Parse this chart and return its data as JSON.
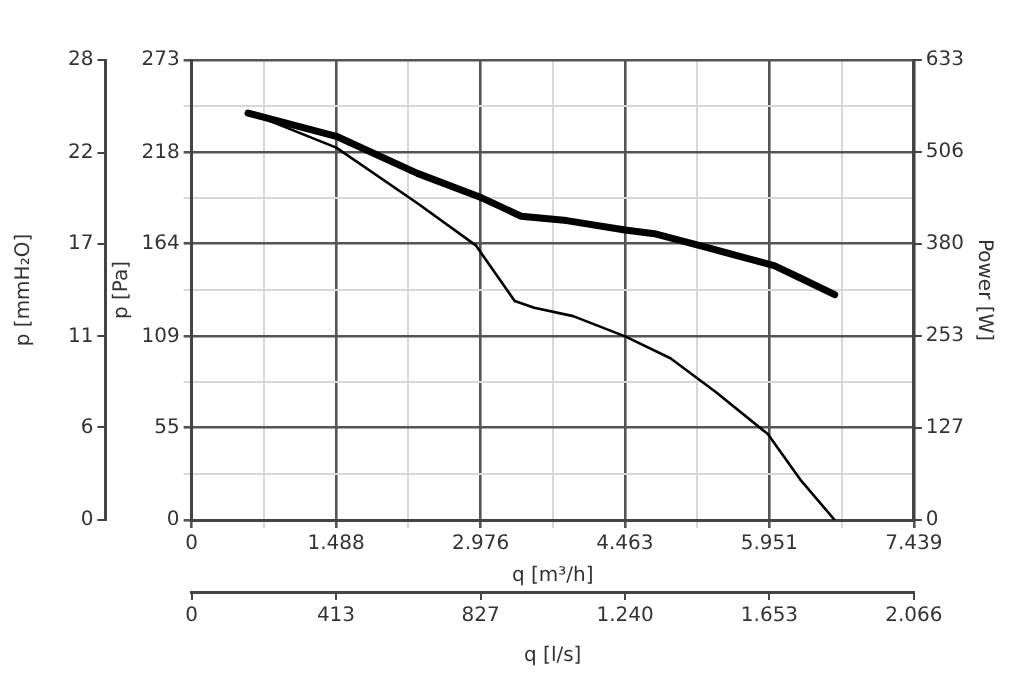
{
  "chart_data": {
    "type": "line",
    "xlabel": "q [m³/h]",
    "ylabel": "p [Pa]",
    "y2label": "Power [W]",
    "y3label": "p [mmH₂O]",
    "x2label": "q [l/s]",
    "xlim": [
      0,
      7439
    ],
    "xticks": [
      0,
      {
        "value": 744,
        "label": null
      },
      {
        "value": 1488,
        "label": "1.488"
      },
      {
        "value": 2232,
        "label": null
      },
      {
        "value": 2976,
        "label": "2.976"
      },
      {
        "value": 3720,
        "label": null
      },
      {
        "value": 4463,
        "label": "4.463"
      },
      {
        "value": 5207,
        "label": null
      },
      {
        "value": 5951,
        "label": "5.951"
      },
      {
        "value": 6695,
        "label": null
      },
      {
        "value": 7439,
        "label": "7.439"
      }
    ],
    "ylim": [
      0,
      273
    ],
    "yticks": [
      0,
      {
        "value": 27.3,
        "label": null
      },
      55,
      {
        "value": 82,
        "label": null
      },
      109,
      {
        "value": 136.5,
        "label": null
      },
      164,
      {
        "value": 191,
        "label": null
      },
      218,
      {
        "value": 245.5,
        "label": null
      },
      273
    ],
    "y2lim": [
      0,
      633
    ],
    "y2ticks": [
      0,
      127,
      253,
      380,
      506,
      633
    ],
    "y3lim": [
      0,
      27.8
    ],
    "y3ticks": [
      0,
      {
        "value": 5.6,
        "label": "6"
      },
      {
        "value": 11.1,
        "label": "11"
      },
      {
        "value": 16.7,
        "label": "17"
      },
      {
        "value": 22.2,
        "label": "22"
      },
      {
        "value": 27.8,
        "label": "28"
      }
    ],
    "x2lim": [
      0,
      2066
    ],
    "x2ticks": [
      0,
      413,
      827,
      {
        "value": 1240,
        "label": "1.240"
      },
      {
        "value": 1653,
        "label": "1.653"
      },
      {
        "value": 2066,
        "label": "2.066"
      }
    ],
    "grid": true,
    "legend": false,
    "marker": "none",
    "line_style": "solid",
    "series": [
      {
        "color": "#000000",
        "x": [
          581,
          1490,
          2326,
          2927,
          3328,
          3529,
          3930,
          4465,
          4932,
          5399,
          5935,
          6269,
          6624
        ],
        "values": [
          242,
          221,
          188,
          163,
          130,
          126,
          121,
          109,
          96,
          76,
          51,
          24,
          0
        ]
      },
      {
        "color": "#000000",
        "axis": "y2",
        "x": [
          581,
          1490,
          2326,
          2994,
          3395,
          3863,
          4465,
          4766,
          5333,
          6001,
          6269,
          6624
        ],
        "values": [
          560,
          528,
          477,
          443,
          418,
          412,
          399,
          394,
          374,
          350,
          333,
          310
        ]
      }
    ]
  }
}
